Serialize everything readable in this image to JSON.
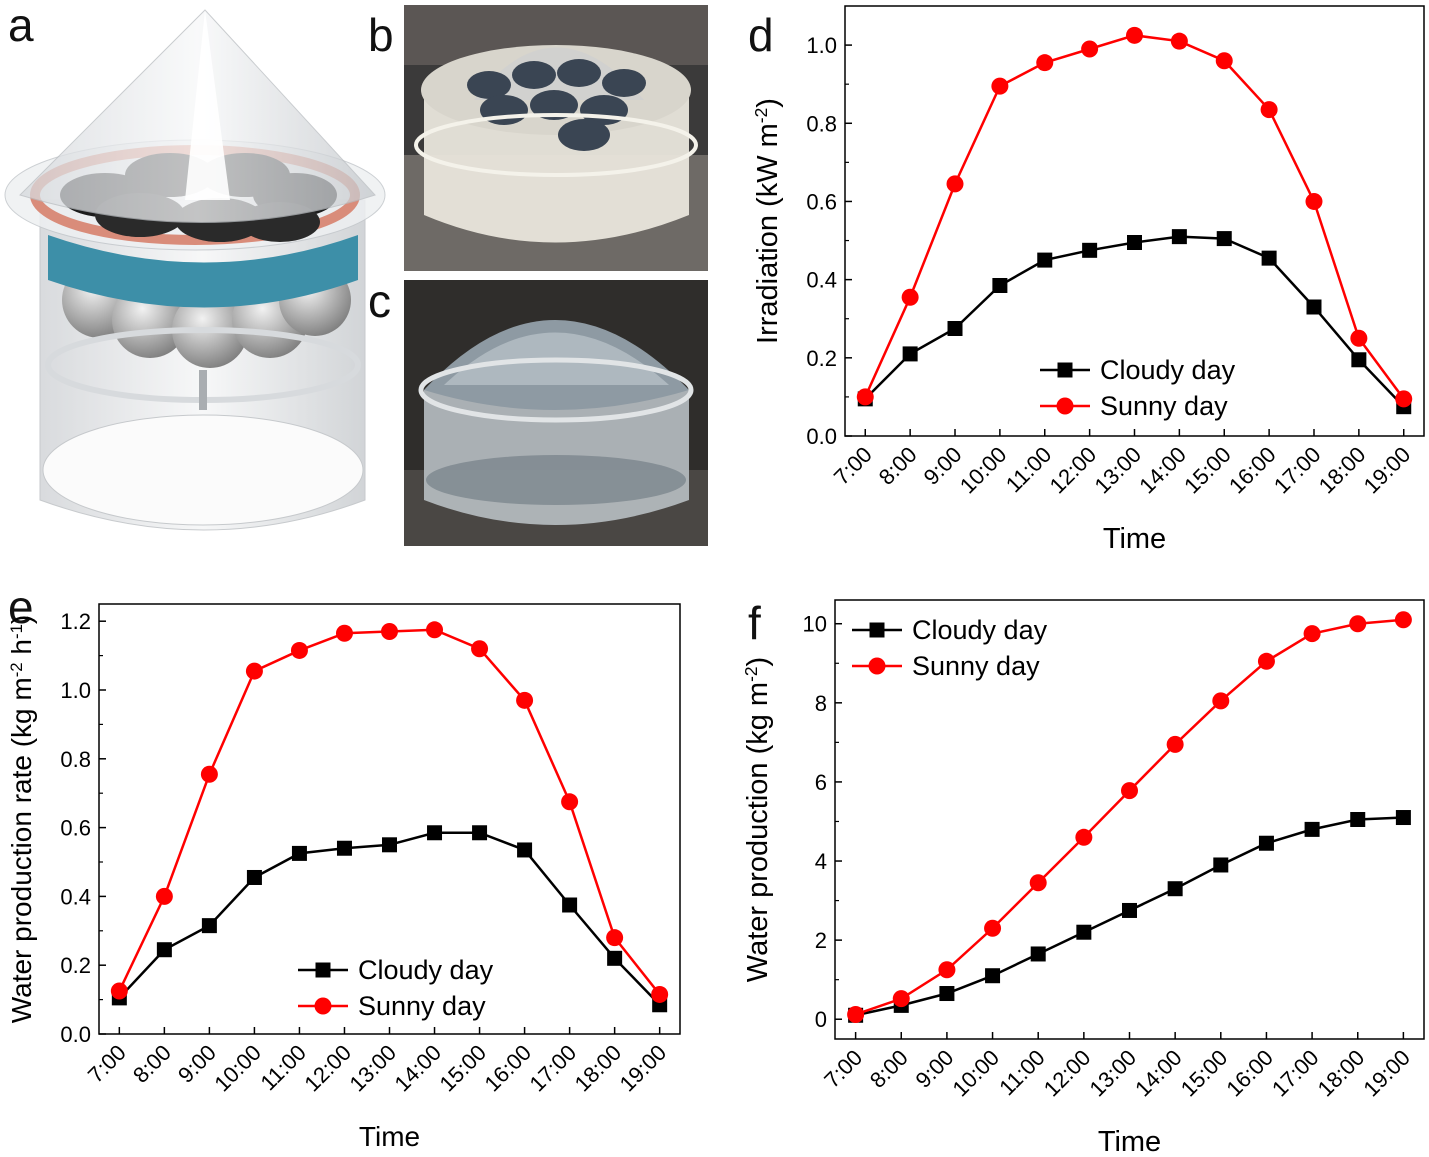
{
  "panels": {
    "a": "a",
    "b": "b",
    "c": "c",
    "d": "d",
    "e": "e",
    "f": "f"
  },
  "colors": {
    "cloudy": "#000000",
    "sunny": "#ff0000",
    "cone": "#cfd3d8",
    "ring_pink": "#d98c7a",
    "ring_blue": "#3d8fa8"
  },
  "chart_data": [
    {
      "id": "d",
      "type": "line",
      "title": "",
      "xlabel": "Time",
      "ylabel_main": "Irradiation (kW m",
      "ylabel_sup": "-2",
      "ylabel_tail": ")",
      "categories": [
        "7:00",
        "8:00",
        "9:00",
        "10:00",
        "11:00",
        "12:00",
        "13:00",
        "14:00",
        "15:00",
        "16:00",
        "17:00",
        "18:00",
        "19:00"
      ],
      "yticks": [
        "0.0",
        "0.2",
        "0.4",
        "0.6",
        "0.8",
        "1.0"
      ],
      "ylim": [
        0,
        1.1
      ],
      "legend_position": "bottom-center",
      "series": [
        {
          "name": "Cloudy day",
          "marker": "square",
          "color": "#000000",
          "values": [
            0.095,
            0.21,
            0.275,
            0.385,
            0.45,
            0.475,
            0.495,
            0.51,
            0.505,
            0.455,
            0.33,
            0.195,
            0.075
          ]
        },
        {
          "name": "Sunny day",
          "marker": "circle",
          "color": "#ff0000",
          "values": [
            0.1,
            0.355,
            0.645,
            0.895,
            0.955,
            0.99,
            1.025,
            1.01,
            0.96,
            0.835,
            0.6,
            0.25,
            0.095
          ]
        }
      ]
    },
    {
      "id": "e",
      "type": "line",
      "title": "",
      "xlabel": "Time",
      "ylabel_main": "Water production rate (kg m",
      "ylabel_sup": "-2",
      "ylabel_mid": " h",
      "ylabel_sup2": "-1",
      "ylabel_tail": ")",
      "categories": [
        "7:00",
        "8:00",
        "9:00",
        "10:00",
        "11:00",
        "12:00",
        "13:00",
        "14:00",
        "15:00",
        "16:00",
        "17:00",
        "18:00",
        "19:00"
      ],
      "yticks": [
        "0.0",
        "0.2",
        "0.4",
        "0.6",
        "0.8",
        "1.0",
        "1.2"
      ],
      "ylim": [
        0,
        1.25
      ],
      "legend_position": "bottom-center",
      "series": [
        {
          "name": "Cloudy day",
          "marker": "square",
          "color": "#000000",
          "values": [
            0.105,
            0.245,
            0.315,
            0.455,
            0.525,
            0.54,
            0.55,
            0.585,
            0.585,
            0.535,
            0.375,
            0.22,
            0.085
          ]
        },
        {
          "name": "Sunny day",
          "marker": "circle",
          "color": "#ff0000",
          "values": [
            0.125,
            0.4,
            0.755,
            1.055,
            1.115,
            1.165,
            1.17,
            1.175,
            1.12,
            0.97,
            0.675,
            0.28,
            0.115
          ]
        }
      ]
    },
    {
      "id": "f",
      "type": "line",
      "title": "",
      "xlabel": "Time",
      "ylabel_main": "Water production (kg m",
      "ylabel_sup": "-2",
      "ylabel_tail": ")",
      "categories": [
        "7:00",
        "8:00",
        "9:00",
        "10:00",
        "11:00",
        "12:00",
        "13:00",
        "14:00",
        "15:00",
        "16:00",
        "17:00",
        "18:00",
        "19:00"
      ],
      "yticks": [
        "0",
        "2",
        "4",
        "6",
        "8",
        "10"
      ],
      "ylim": [
        -0.5,
        10.6
      ],
      "legend_position": "top-left",
      "series": [
        {
          "name": "Cloudy day",
          "marker": "square",
          "color": "#000000",
          "values": [
            0.1,
            0.35,
            0.65,
            1.1,
            1.65,
            2.2,
            2.75,
            3.3,
            3.9,
            4.45,
            4.8,
            5.05,
            5.1
          ]
        },
        {
          "name": "Sunny day",
          "marker": "circle",
          "color": "#ff0000",
          "values": [
            0.12,
            0.52,
            1.25,
            2.3,
            3.45,
            4.6,
            5.78,
            6.95,
            8.05,
            9.05,
            9.75,
            10.0,
            10.1
          ]
        }
      ]
    }
  ]
}
